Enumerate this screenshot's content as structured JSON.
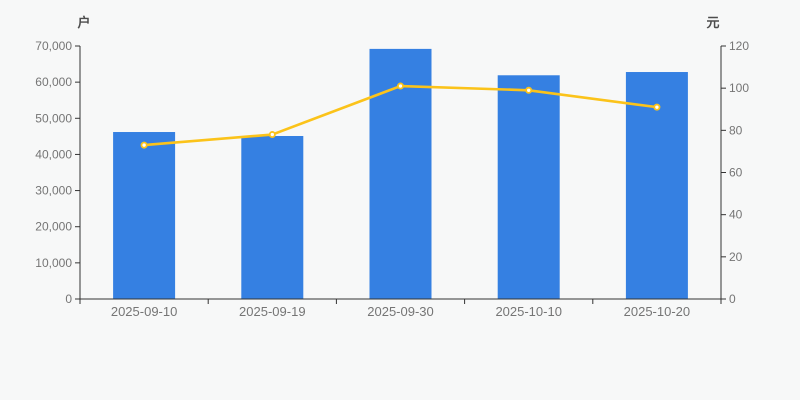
{
  "chart_data": {
    "type": "combo",
    "categories": [
      "2025-09-10",
      "2025-09-19",
      "2025-09-30",
      "2025-10-10",
      "2025-10-20"
    ],
    "series": [
      {
        "id": "bar-series",
        "type": "bar",
        "axis": "left",
        "values": [
          46200,
          45100,
          69200,
          61900,
          62800
        ]
      },
      {
        "id": "line-series",
        "type": "line",
        "axis": "right",
        "values": [
          73,
          78,
          101,
          99,
          91
        ]
      }
    ],
    "left_axis": {
      "unit": "户",
      "min": 0,
      "max": 70000,
      "tick_labels": [
        "0",
        "10,000",
        "20,000",
        "30,000",
        "40,000",
        "50,000",
        "60,000",
        "70,000"
      ]
    },
    "right_axis": {
      "unit": "元",
      "min": 0,
      "max": 120,
      "tick_labels": [
        "0",
        "20",
        "40",
        "60",
        "80",
        "100",
        "120"
      ]
    },
    "legend_visible": false,
    "grid_visible": false
  },
  "colors": {
    "background": "#f7f8f8",
    "bar": "#3580e2",
    "line": "#fbc31a",
    "marker_fill": "#ffffff",
    "axis": "#333333",
    "tick_label": "#757575",
    "unit_label": "#4d4d4d"
  }
}
